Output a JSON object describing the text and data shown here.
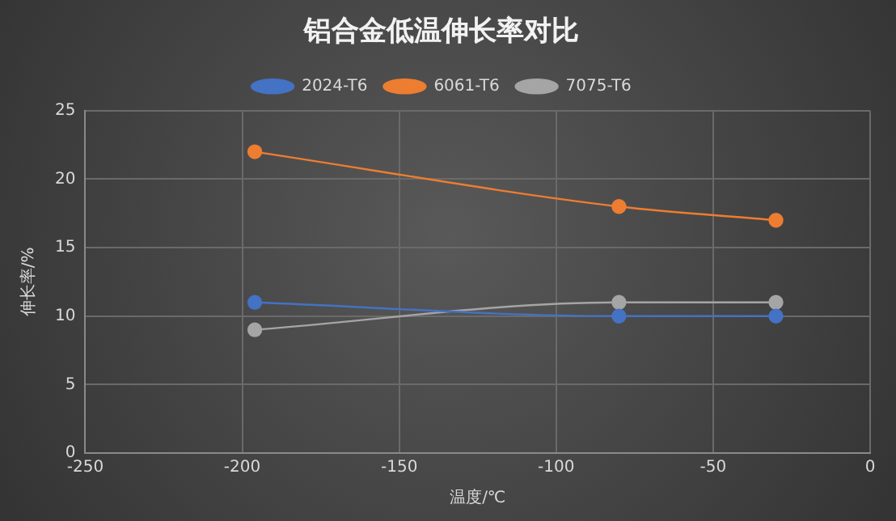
{
  "chart_data": {
    "type": "line",
    "title": "铝合金低温伸长率对比",
    "xlabel": "温度/℃",
    "ylabel": "伸长率/%",
    "x": [
      -196,
      -80,
      -30
    ],
    "series": [
      {
        "name": "2024-T6",
        "color": "#4472c4",
        "values": [
          11,
          10,
          10
        ]
      },
      {
        "name": "6061-T6",
        "color": "#ed7d31",
        "values": [
          22,
          18,
          17
        ]
      },
      {
        "name": "7075-T6",
        "color": "#a5a5a5",
        "values": [
          9,
          11,
          11
        ]
      }
    ],
    "xlim": [
      -250,
      0
    ],
    "xticks": [
      -250,
      -200,
      -150,
      -100,
      -50,
      0
    ],
    "ylim": [
      0,
      25
    ],
    "yticks": [
      0,
      5,
      10,
      15,
      20,
      25
    ],
    "grid": true,
    "legend": "top",
    "marker": "circle",
    "line_style": "solid"
  }
}
